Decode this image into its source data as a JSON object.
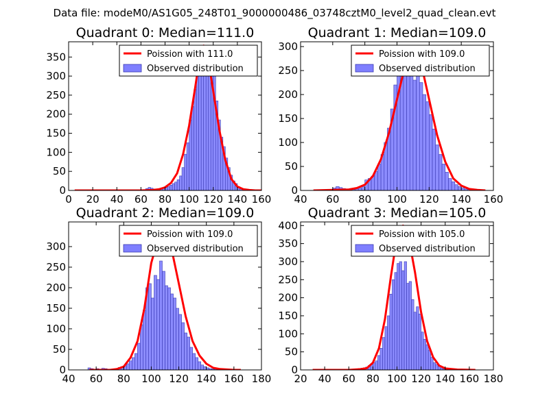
{
  "suptitle": "Data file: modeM0/AS1G05_248T01_9000000486_03748cztM0_level2_quad_clean.evt",
  "colors": {
    "fit": "#ff0000",
    "bar_fill": "#7f7fff",
    "bar_edge": "#3a3ab0",
    "legend_edge": "#000000"
  },
  "chart_data": [
    {
      "type": "bar",
      "title": "Quadrant 0: Median=111.0",
      "median": 111.0,
      "legend": [
        "Poission with 111.0",
        "Observed distribution"
      ],
      "legend_position": "top-right",
      "xlim": [
        0,
        160
      ],
      "ylim": [
        0,
        390
      ],
      "xticks": [
        0,
        20,
        40,
        60,
        80,
        100,
        120,
        140,
        160
      ],
      "yticks": [
        0,
        50,
        100,
        150,
        200,
        250,
        300,
        350
      ],
      "bin_edges": [
        62,
        64,
        66,
        68,
        70,
        72,
        74,
        76,
        78,
        80,
        82,
        84,
        86,
        88,
        90,
        92,
        94,
        96,
        98,
        100,
        102,
        104,
        106,
        108,
        110,
        112,
        114,
        116,
        118,
        120,
        122,
        124,
        126,
        128,
        130,
        132,
        134,
        136,
        138,
        140,
        142,
        144,
        146,
        148,
        150,
        152,
        154,
        156,
        158,
        160
      ],
      "counts": [
        2,
        5,
        8,
        6,
        4,
        3,
        2,
        4,
        6,
        8,
        10,
        14,
        18,
        22,
        28,
        38,
        60,
        95,
        125,
        185,
        220,
        265,
        300,
        315,
        335,
        350,
        365,
        340,
        330,
        300,
        235,
        185,
        140,
        115,
        85,
        60,
        40,
        25,
        18,
        10,
        5,
        3,
        2,
        1,
        1,
        1,
        0,
        0,
        0
      ],
      "fit_x": [
        5,
        30,
        60,
        70,
        75,
        80,
        85,
        90,
        95,
        100,
        105,
        110,
        112,
        115,
        120,
        125,
        130,
        135,
        140,
        145,
        150,
        155,
        160
      ],
      "fit_y": [
        0,
        0,
        0,
        1,
        3,
        8,
        20,
        45,
        95,
        170,
        270,
        375,
        380,
        360,
        260,
        160,
        80,
        30,
        10,
        3,
        1,
        0,
        0
      ]
    },
    {
      "type": "bar",
      "title": "Quadrant 1: Median=109.0",
      "median": 109.0,
      "legend": [
        "Poission with 109.0",
        "Observed distribution"
      ],
      "legend_position": "top-right",
      "xlim": [
        40,
        160
      ],
      "ylim": [
        0,
        310
      ],
      "xticks": [
        40,
        60,
        80,
        100,
        120,
        140,
        160
      ],
      "yticks": [
        0,
        50,
        100,
        150,
        200,
        250,
        300
      ],
      "bin_edges": [
        60,
        62,
        64,
        66,
        68,
        70,
        72,
        74,
        76,
        78,
        80,
        82,
        84,
        86,
        88,
        90,
        92,
        94,
        96,
        98,
        100,
        102,
        104,
        106,
        108,
        110,
        112,
        114,
        116,
        118,
        120,
        122,
        124,
        126,
        128,
        130,
        132,
        134,
        136,
        138,
        140,
        142,
        144,
        146,
        148,
        150,
        152,
        154
      ],
      "counts": [
        5,
        8,
        6,
        4,
        3,
        2,
        2,
        3,
        5,
        8,
        22,
        25,
        30,
        40,
        55,
        75,
        100,
        130,
        170,
        220,
        245,
        245,
        255,
        240,
        245,
        230,
        250,
        225,
        200,
        185,
        158,
        128,
        95,
        75,
        55,
        38,
        25,
        18,
        12,
        8,
        5,
        3,
        2,
        3,
        2,
        2,
        1
      ],
      "fit_x": [
        48,
        60,
        70,
        75,
        80,
        85,
        90,
        95,
        100,
        105,
        109,
        115,
        120,
        125,
        130,
        135,
        140,
        145,
        150,
        155
      ],
      "fit_y": [
        0,
        1,
        2,
        5,
        12,
        30,
        65,
        120,
        190,
        260,
        295,
        265,
        190,
        115,
        60,
        25,
        10,
        3,
        1,
        0
      ]
    },
    {
      "type": "bar",
      "title": "Quadrant 2: Median=109.0",
      "median": 109.0,
      "legend": [
        "Poission with 109.0",
        "Observed distribution"
      ],
      "legend_position": "top-right",
      "xlim": [
        40,
        180
      ],
      "ylim": [
        0,
        360
      ],
      "xticks": [
        40,
        60,
        80,
        100,
        120,
        140,
        160,
        180
      ],
      "yticks": [
        0,
        50,
        100,
        150,
        200,
        250,
        300
      ],
      "bin_edges": [
        54,
        56,
        58,
        60,
        62,
        64,
        66,
        68,
        70,
        72,
        74,
        76,
        78,
        80,
        82,
        84,
        86,
        88,
        90,
        92,
        94,
        96,
        98,
        100,
        102,
        104,
        106,
        108,
        110,
        112,
        114,
        116,
        118,
        120,
        122,
        124,
        126,
        128,
        130,
        132,
        134,
        136,
        138,
        140,
        142,
        144,
        146,
        148,
        150
      ],
      "counts": [
        5,
        3,
        2,
        3,
        2,
        4,
        3,
        2,
        2,
        2,
        3,
        6,
        8,
        10,
        15,
        22,
        30,
        40,
        65,
        110,
        145,
        200,
        210,
        175,
        230,
        220,
        265,
        240,
        205,
        200,
        185,
        175,
        150,
        135,
        115,
        90,
        80,
        55,
        40,
        30,
        20,
        12,
        8,
        5,
        3,
        2,
        2,
        1
      ],
      "fit_x": [
        55,
        70,
        75,
        80,
        85,
        90,
        95,
        100,
        105,
        109,
        115,
        120,
        125,
        130,
        135,
        140,
        145,
        150,
        160,
        165
      ],
      "fit_y": [
        0,
        0,
        2,
        8,
        30,
        70,
        150,
        260,
        320,
        330,
        290,
        210,
        130,
        70,
        35,
        15,
        5,
        2,
        0,
        0
      ]
    },
    {
      "type": "bar",
      "title": "Quadrant 3: Median=105.0",
      "median": 105.0,
      "legend": [
        "Poission with 105.0",
        "Observed distribution"
      ],
      "legend_position": "top-right",
      "xlim": [
        20,
        180
      ],
      "ylim": [
        0,
        410
      ],
      "xticks": [
        20,
        40,
        60,
        80,
        100,
        120,
        140,
        160,
        180
      ],
      "yticks": [
        0,
        50,
        100,
        150,
        200,
        250,
        300,
        350,
        400
      ],
      "bin_edges": [
        62,
        64,
        66,
        68,
        70,
        72,
        74,
        76,
        78,
        80,
        82,
        84,
        86,
        88,
        90,
        92,
        94,
        96,
        98,
        100,
        102,
        104,
        106,
        108,
        110,
        112,
        114,
        116,
        118,
        120,
        122,
        124,
        126,
        128,
        130,
        132,
        134,
        136,
        138,
        140,
        142,
        144
      ],
      "counts": [
        2,
        2,
        3,
        4,
        5,
        6,
        8,
        12,
        15,
        20,
        25,
        40,
        60,
        90,
        120,
        150,
        210,
        250,
        270,
        295,
        300,
        275,
        300,
        240,
        245,
        195,
        160,
        175,
        155,
        105,
        85,
        70,
        55,
        35,
        20,
        15,
        10,
        5,
        3,
        2,
        1
      ],
      "fit_x": [
        30,
        60,
        70,
        75,
        80,
        85,
        90,
        95,
        100,
        105,
        110,
        115,
        120,
        125,
        130,
        135,
        140,
        150,
        165
      ],
      "fit_y": [
        0,
        0,
        2,
        5,
        20,
        60,
        140,
        260,
        370,
        400,
        360,
        270,
        160,
        80,
        35,
        12,
        4,
        1,
        0
      ]
    }
  ]
}
